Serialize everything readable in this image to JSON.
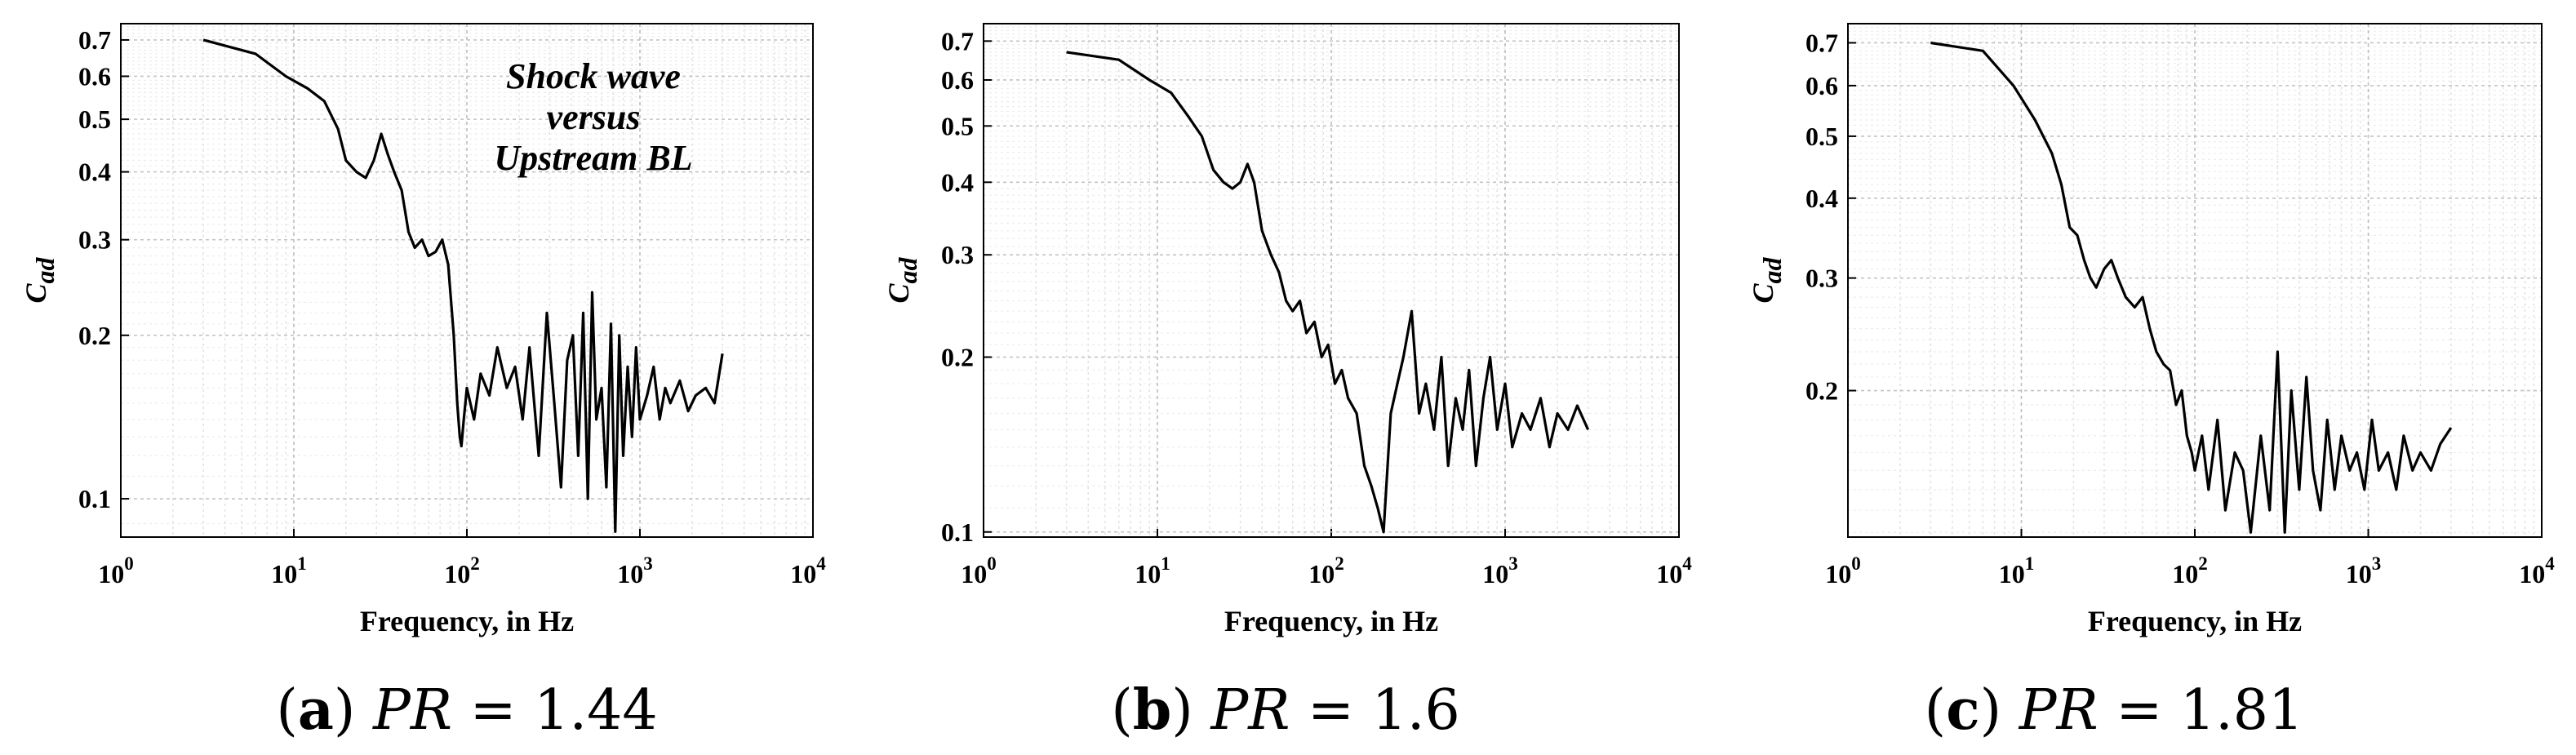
{
  "chart_data": [
    {
      "type": "line",
      "xscale": "log",
      "yscale": "log",
      "xlim": [
        1,
        10000
      ],
      "ylim": [
        0.085,
        0.75
      ],
      "xlabel": "Frequency, in Hz",
      "ylabel_main": "C",
      "ylabel_sub": "ad",
      "x_ticks": [
        1,
        10,
        100,
        1000,
        10000
      ],
      "x_tick_labels": [
        [
          "10",
          "0"
        ],
        [
          "10",
          "1"
        ],
        [
          "10",
          "2"
        ],
        [
          "10",
          "3"
        ],
        [
          "10",
          "4"
        ]
      ],
      "y_ticks": [
        0.1,
        0.2,
        0.3,
        0.4,
        0.5,
        0.6,
        0.7
      ],
      "y_tick_labels": [
        "0.1",
        "0.2",
        "0.3",
        "0.4",
        "0.5",
        "0.6",
        "0.7"
      ],
      "caption": {
        "label": "a",
        "var": "PR",
        "value": "= 1.44"
      },
      "annotation": [
        "Shock wave",
        "versus",
        "Upstream BL"
      ],
      "series": [
        {
          "name": "Cad",
          "x": [
            3,
            6,
            9,
            12,
            15,
            18,
            20,
            23,
            26,
            29,
            32,
            35,
            38,
            42,
            46,
            50,
            55,
            60,
            66,
            72,
            78,
            84,
            88,
            91,
            93,
            96,
            100,
            110,
            120,
            135,
            150,
            170,
            190,
            210,
            230,
            260,
            290,
            320,
            350,
            380,
            410,
            440,
            470,
            500,
            530,
            560,
            600,
            640,
            680,
            720,
            760,
            800,
            850,
            900,
            950,
            1000,
            1100,
            1200,
            1300,
            1400,
            1500,
            1700,
            1900,
            2100,
            2400,
            2700,
            3000
          ],
          "y": [
            0.7,
            0.66,
            0.6,
            0.57,
            0.54,
            0.48,
            0.42,
            0.4,
            0.39,
            0.42,
            0.47,
            0.43,
            0.4,
            0.37,
            0.31,
            0.29,
            0.3,
            0.28,
            0.285,
            0.3,
            0.27,
            0.2,
            0.15,
            0.13,
            0.125,
            0.14,
            0.16,
            0.14,
            0.17,
            0.155,
            0.19,
            0.16,
            0.175,
            0.14,
            0.19,
            0.12,
            0.22,
            0.15,
            0.105,
            0.18,
            0.2,
            0.12,
            0.22,
            0.1,
            0.24,
            0.14,
            0.16,
            0.105,
            0.21,
            0.087,
            0.2,
            0.12,
            0.175,
            0.13,
            0.19,
            0.14,
            0.155,
            0.175,
            0.14,
            0.16,
            0.15,
            0.165,
            0.145,
            0.155,
            0.16,
            0.15,
            0.185
          ]
        }
      ]
    },
    {
      "type": "line",
      "xscale": "log",
      "yscale": "log",
      "xlim": [
        1,
        10000
      ],
      "ylim": [
        0.098,
        0.75
      ],
      "xlabel": "Frequency, in Hz",
      "ylabel_main": "C",
      "ylabel_sub": "ad",
      "x_ticks": [
        1,
        10,
        100,
        1000,
        10000
      ],
      "x_tick_labels": [
        [
          "10",
          "0"
        ],
        [
          "10",
          "1"
        ],
        [
          "10",
          "2"
        ],
        [
          "10",
          "3"
        ],
        [
          "10",
          "4"
        ]
      ],
      "y_ticks": [
        0.1,
        0.2,
        0.3,
        0.4,
        0.5,
        0.6,
        0.7
      ],
      "y_tick_labels": [
        "0.1",
        "0.2",
        "0.3",
        "0.4",
        "0.5",
        "0.6",
        "0.7"
      ],
      "caption": {
        "label": "b",
        "var": "PR",
        "value": "= 1.6"
      },
      "series": [
        {
          "name": "Cad",
          "x": [
            3,
            6,
            9,
            12,
            15,
            18,
            21,
            24,
            27,
            30,
            33,
            36,
            40,
            45,
            50,
            55,
            60,
            66,
            72,
            80,
            88,
            96,
            105,
            115,
            125,
            140,
            155,
            170,
            185,
            200,
            220,
            240,
            260,
            290,
            320,
            350,
            390,
            430,
            470,
            520,
            570,
            620,
            680,
            750,
            820,
            900,
            1000,
            1100,
            1250,
            1400,
            1600,
            1800,
            2000,
            2300,
            2600,
            3000
          ],
          "y": [
            0.67,
            0.65,
            0.6,
            0.57,
            0.52,
            0.48,
            0.42,
            0.4,
            0.39,
            0.4,
            0.43,
            0.4,
            0.33,
            0.3,
            0.28,
            0.25,
            0.24,
            0.25,
            0.22,
            0.23,
            0.2,
            0.21,
            0.18,
            0.19,
            0.17,
            0.16,
            0.13,
            0.12,
            0.11,
            0.1,
            0.16,
            0.18,
            0.2,
            0.24,
            0.16,
            0.18,
            0.15,
            0.2,
            0.13,
            0.17,
            0.15,
            0.19,
            0.13,
            0.17,
            0.2,
            0.15,
            0.18,
            0.14,
            0.16,
            0.15,
            0.17,
            0.14,
            0.16,
            0.15,
            0.165,
            0.15
          ]
        }
      ]
    },
    {
      "type": "line",
      "xscale": "log",
      "yscale": "log",
      "xlim": [
        1,
        10000
      ],
      "ylim": [
        0.118,
        0.75
      ],
      "xlabel": "Frequency, in Hz",
      "ylabel_main": "C",
      "ylabel_sub": "ad",
      "x_ticks": [
        1,
        10,
        100,
        1000,
        10000
      ],
      "x_tick_labels": [
        [
          "10",
          "0"
        ],
        [
          "10",
          "1"
        ],
        [
          "10",
          "2"
        ],
        [
          "10",
          "3"
        ],
        [
          "10",
          "4"
        ]
      ],
      "y_ticks": [
        0.2,
        0.3,
        0.4,
        0.5,
        0.6,
        0.7
      ],
      "y_tick_labels": [
        "0.2",
        "0.3",
        "0.4",
        "0.5",
        "0.6",
        "0.7"
      ],
      "caption": {
        "label": "c",
        "var": "PR",
        "value": "= 1.81"
      },
      "series": [
        {
          "name": "Cad",
          "x": [
            3,
            6,
            9,
            12,
            15,
            17,
            19,
            21,
            23,
            25,
            27,
            30,
            33,
            36,
            40,
            45,
            50,
            55,
            60,
            66,
            72,
            78,
            84,
            90,
            96,
            100,
            110,
            120,
            135,
            150,
            170,
            190,
            210,
            240,
            270,
            300,
            330,
            360,
            400,
            440,
            480,
            530,
            580,
            640,
            700,
            780,
            860,
            950,
            1050,
            1150,
            1300,
            1450,
            1600,
            1800,
            2000,
            2300,
            2600,
            3000
          ],
          "y": [
            0.7,
            0.68,
            0.6,
            0.53,
            0.47,
            0.42,
            0.36,
            0.35,
            0.32,
            0.3,
            0.29,
            0.31,
            0.32,
            0.3,
            0.28,
            0.27,
            0.28,
            0.25,
            0.23,
            0.22,
            0.215,
            0.19,
            0.2,
            0.17,
            0.16,
            0.15,
            0.17,
            0.14,
            0.18,
            0.13,
            0.16,
            0.15,
            0.12,
            0.17,
            0.13,
            0.23,
            0.12,
            0.2,
            0.14,
            0.21,
            0.15,
            0.13,
            0.18,
            0.14,
            0.17,
            0.15,
            0.16,
            0.14,
            0.18,
            0.15,
            0.16,
            0.14,
            0.17,
            0.15,
            0.16,
            0.15,
            0.165,
            0.175
          ]
        }
      ]
    }
  ]
}
